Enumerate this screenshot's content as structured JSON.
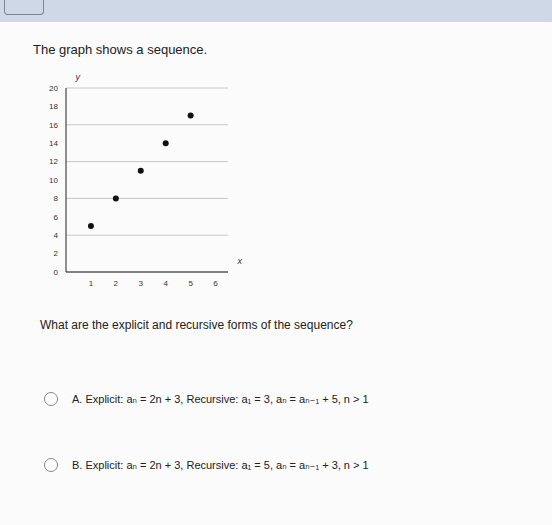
{
  "heading": "The graph shows a sequence.",
  "chart_data": {
    "type": "scatter",
    "x": [
      1,
      2,
      3,
      4,
      5
    ],
    "values": [
      5,
      8,
      11,
      14,
      17
    ],
    "xlim": [
      0,
      6.5
    ],
    "ylim": [
      0,
      20
    ],
    "xticks": [
      1,
      2,
      3,
      4,
      5,
      6
    ],
    "yticks": [
      0,
      2,
      4,
      6,
      8,
      10,
      12,
      14,
      16,
      18,
      20
    ],
    "x_label": "x",
    "y_label": "y",
    "color": "#111111",
    "marker": "circle",
    "grid": true
  },
  "question": "What are the explicit and recursive forms of the sequence?",
  "options": [
    "A. Explicit: aₙ = 2n + 3, Recursive: a₁ = 3, aₙ = aₙ₋₁ + 5, n > 1",
    "B. Explicit: aₙ = 2n + 3, Recursive: a₁ = 5, aₙ = aₙ₋₁ + 3, n > 1"
  ]
}
